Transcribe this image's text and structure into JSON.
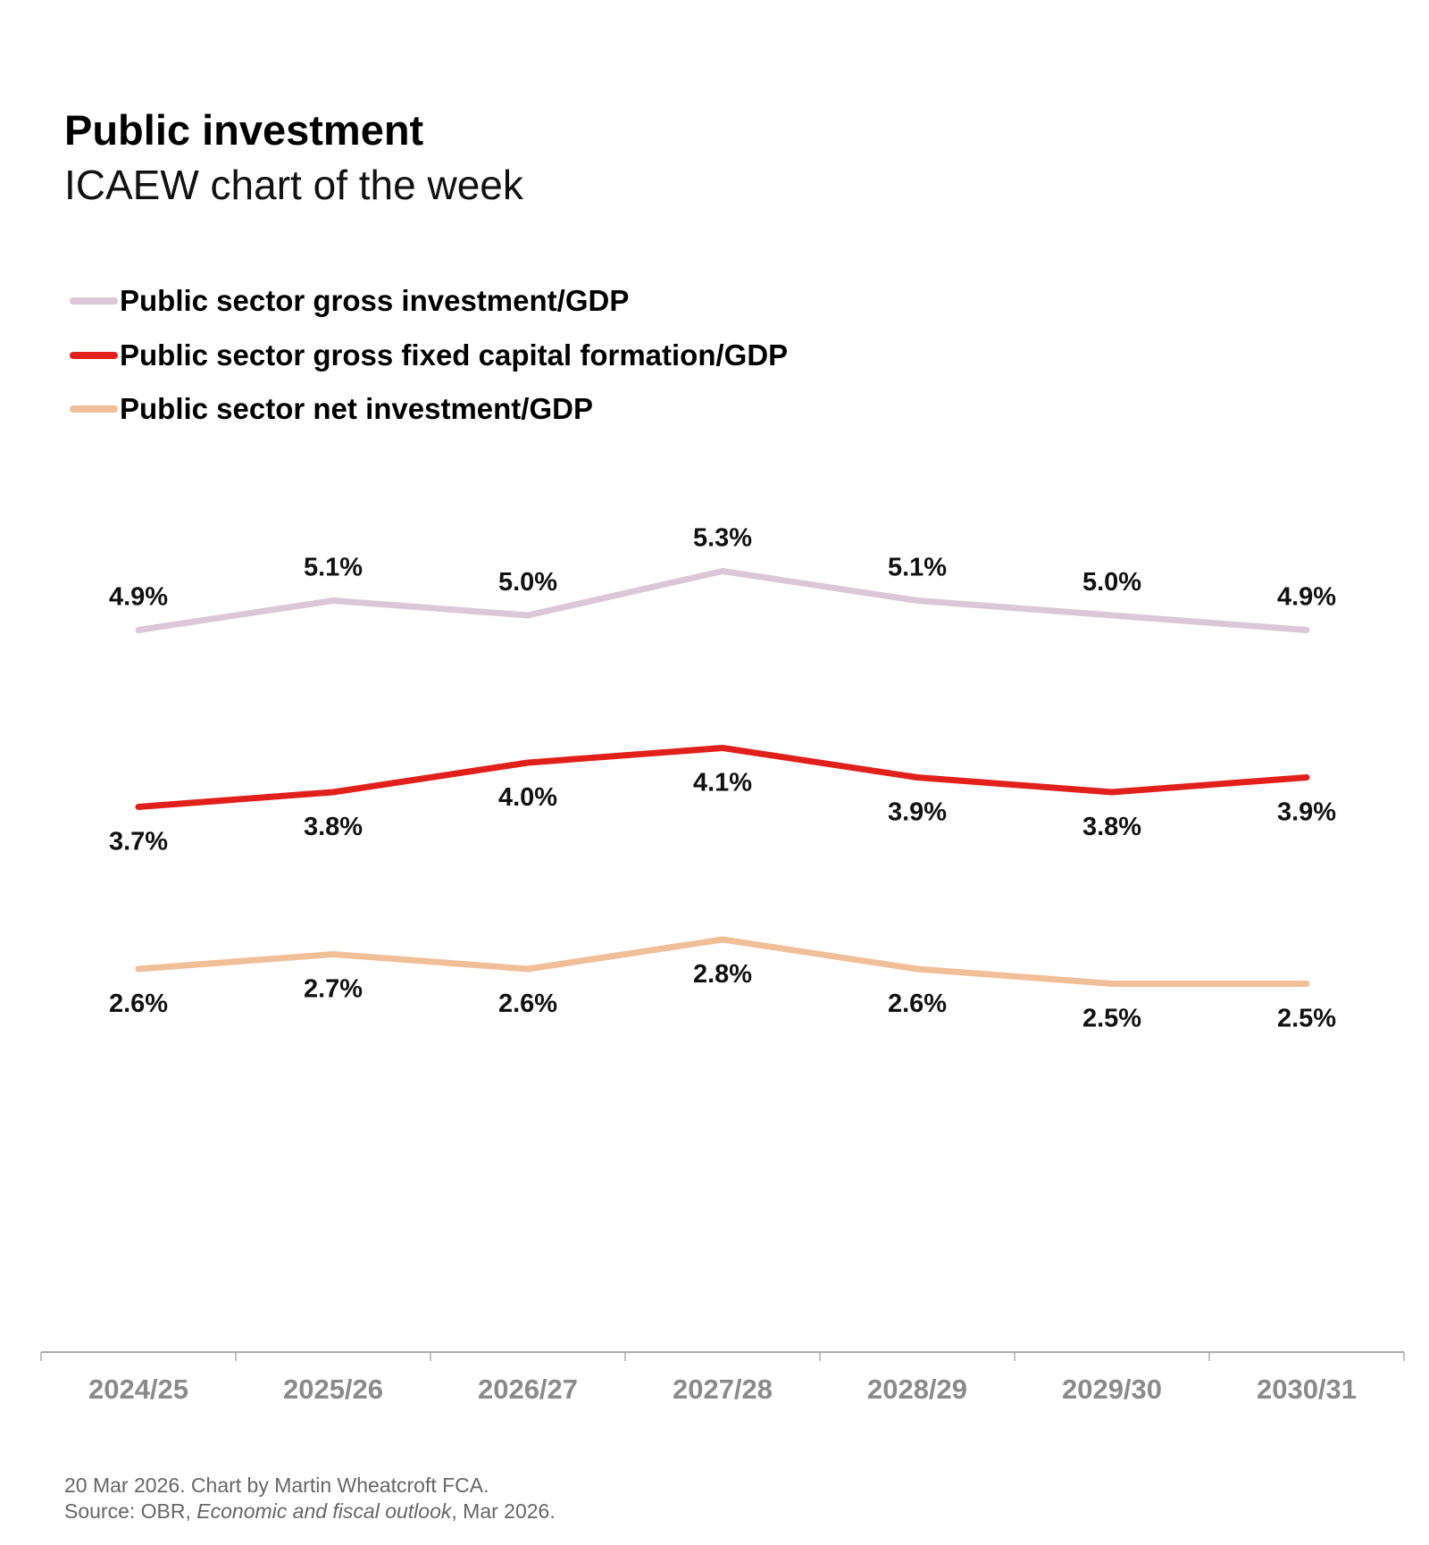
{
  "title": "Public investment",
  "subtitle": "ICAEW chart of the week",
  "footer": {
    "line1": "20 Mar 2026.   Chart by Martin Wheatcroft FCA.",
    "source_prefix": "Source: OBR, ",
    "source_title": "Economic and fiscal outlook",
    "source_suffix": ", Mar 2026."
  },
  "chart_data": {
    "type": "line",
    "title": "Public investment",
    "subtitle": "ICAEW chart of the week",
    "categories": [
      "2024/25",
      "2025/26",
      "2026/27",
      "2027/28",
      "2028/29",
      "2029/30",
      "2030/31"
    ],
    "ylim": [
      0,
      5.3
    ],
    "y_axis_visible": false,
    "grid": false,
    "legend_placement": "top-left",
    "unit": "%",
    "series": [
      {
        "name": "Public sector gross investment/GDP",
        "color": "#dcc7d8",
        "values": [
          4.9,
          5.1,
          5.0,
          5.3,
          5.1,
          5.0,
          4.9
        ],
        "labels": [
          "4.9%",
          "5.1%",
          "5.0%",
          "5.3%",
          "5.1%",
          "5.0%",
          "4.9%"
        ],
        "label_position": "above"
      },
      {
        "name": "Public sector gross fixed capital formation/GDP",
        "color": "#e1201b",
        "values": [
          3.7,
          3.8,
          4.0,
          4.1,
          3.9,
          3.8,
          3.9
        ],
        "labels": [
          "3.7%",
          "3.8%",
          "4.0%",
          "4.1%",
          "3.9%",
          "3.8%",
          "3.9%"
        ],
        "label_position": "below"
      },
      {
        "name": "Public sector net investment/GDP",
        "color": "#f0bf98",
        "values": [
          2.6,
          2.7,
          2.6,
          2.8,
          2.6,
          2.5,
          2.5
        ],
        "labels": [
          "2.6%",
          "2.7%",
          "2.6%",
          "2.8%",
          "2.6%",
          "2.5%",
          "2.5%"
        ],
        "label_position": "below"
      }
    ]
  }
}
